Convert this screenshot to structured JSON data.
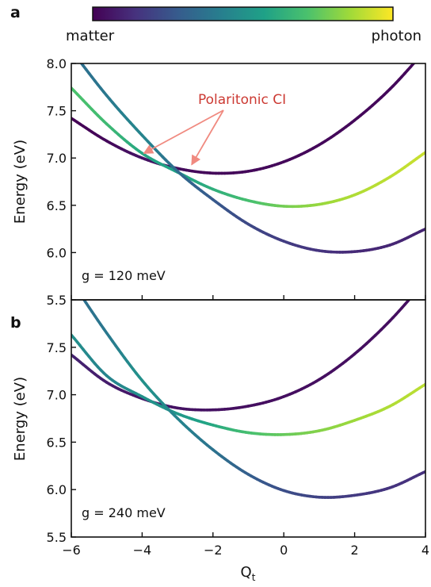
{
  "colorbar": {
    "left_label": "matter",
    "right_label": "photon",
    "colors": [
      "#440154",
      "#46327e",
      "#365c8d",
      "#277f8e",
      "#1fa187",
      "#4ac16d",
      "#a0da39",
      "#fde725"
    ]
  },
  "chart_data": [
    {
      "type": "line",
      "panel_letter": "a",
      "xlabel": "Q",
      "xlabel_sub": "t",
      "ylabel": "Energy (eV)",
      "xlim": [
        -6,
        4
      ],
      "ylim": [
        5.5,
        8.0
      ],
      "xticks": [
        "−6",
        "−4",
        "−2",
        "0",
        "2",
        "4"
      ],
      "yticks": [
        "8.0",
        "7.5",
        "7.0",
        "6.5",
        "6.0",
        "5.5"
      ],
      "annotation_text": "g = 120 meV",
      "callout": "Polaritonic CI",
      "callout_color": "#f08a80",
      "callout_targets": [
        [
          -3.95,
          7.05
        ],
        [
          -2.6,
          6.93
        ]
      ],
      "series": [
        {
          "x": [
            -6,
            -5,
            -4,
            -3,
            -2,
            -1,
            0,
            1,
            2,
            3,
            4
          ],
          "values": [
            7.42,
            7.18,
            7.0,
            6.89,
            6.84,
            6.86,
            6.96,
            7.14,
            7.4,
            7.73,
            8.14
          ],
          "photon_fraction": [
            0.0,
            0.02,
            0.05,
            0.03,
            0.02,
            0.02,
            0.02,
            0.02,
            0.02,
            0.02,
            0.02
          ]
        },
        {
          "x": [
            -6,
            -5,
            -4,
            -3,
            -2,
            -1,
            0,
            1,
            2,
            3,
            4
          ],
          "values": [
            7.74,
            7.36,
            7.05,
            6.85,
            6.67,
            6.55,
            6.49,
            6.51,
            6.61,
            6.8,
            7.06
          ],
          "photon_fraction": [
            0.72,
            0.68,
            0.6,
            0.58,
            0.63,
            0.7,
            0.78,
            0.84,
            0.88,
            0.9,
            0.92
          ]
        },
        {
          "x": [
            -6,
            -5,
            -4,
            -3,
            -2,
            -1,
            0,
            1,
            2,
            3,
            4
          ],
          "values": [
            8.14,
            7.66,
            7.24,
            6.86,
            6.56,
            6.3,
            6.12,
            6.02,
            6.01,
            6.08,
            6.25
          ],
          "photon_fraction": [
            0.35,
            0.4,
            0.45,
            0.35,
            0.28,
            0.22,
            0.18,
            0.15,
            0.12,
            0.11,
            0.1
          ]
        }
      ]
    },
    {
      "type": "line",
      "panel_letter": "b",
      "xlabel": "Q",
      "xlabel_sub": "t",
      "ylabel": "Energy (eV)",
      "xlim": [
        -6,
        4
      ],
      "ylim": [
        5.5,
        8.0
      ],
      "xticks": [
        "−6",
        "−4",
        "−2",
        "0",
        "2",
        "4"
      ],
      "yticks": [
        "7.5",
        "7.0",
        "6.5",
        "6.0",
        "5.5"
      ],
      "annotation_text": "g = 240 meV",
      "series": [
        {
          "x": [
            -6,
            -5,
            -4,
            -3,
            -2,
            -1,
            0,
            1,
            2,
            3,
            4
          ],
          "values": [
            7.42,
            7.13,
            6.96,
            6.86,
            6.84,
            6.88,
            6.98,
            7.16,
            7.43,
            7.78,
            8.2
          ],
          "photon_fraction": [
            0.1,
            0.08,
            0.06,
            0.05,
            0.05,
            0.04,
            0.04,
            0.04,
            0.04,
            0.04,
            0.04
          ]
        },
        {
          "x": [
            -6,
            -5,
            -4,
            -3,
            -2,
            -1,
            0,
            1,
            2,
            3,
            4
          ],
          "values": [
            7.63,
            7.2,
            6.98,
            6.8,
            6.68,
            6.6,
            6.58,
            6.62,
            6.73,
            6.88,
            7.11
          ],
          "photon_fraction": [
            0.5,
            0.45,
            0.5,
            0.53,
            0.6,
            0.7,
            0.76,
            0.81,
            0.85,
            0.88,
            0.9
          ]
        },
        {
          "x": [
            -6,
            -5,
            -4,
            -3,
            -2,
            -1,
            0,
            1,
            2,
            3,
            4
          ],
          "values": [
            8.2,
            7.65,
            7.15,
            6.75,
            6.42,
            6.16,
            5.99,
            5.92,
            5.94,
            6.02,
            6.19
          ],
          "photon_fraction": [
            0.35,
            0.4,
            0.5,
            0.45,
            0.38,
            0.3,
            0.24,
            0.2,
            0.17,
            0.15,
            0.14
          ]
        }
      ]
    }
  ]
}
